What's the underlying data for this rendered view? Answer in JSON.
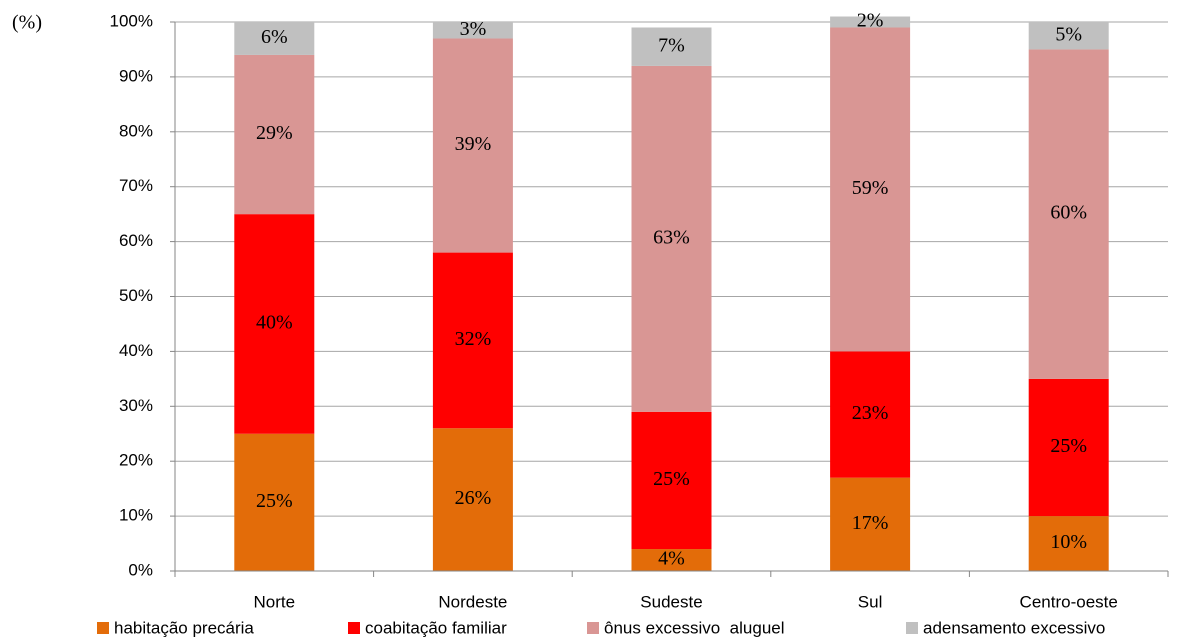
{
  "chart_data": {
    "type": "stacked_bar",
    "y_label": "(%)",
    "categories": [
      "Norte",
      "Nordeste",
      "Sudeste",
      "Sul",
      "Centro-oeste"
    ],
    "series": [
      {
        "name": "habitação precária",
        "color": "#E36C09",
        "values": [
          25,
          26,
          4,
          17,
          10
        ],
        "value_labels": [
          "25%",
          "26%",
          "4%",
          "17%",
          "10%"
        ]
      },
      {
        "name": "coabitação familiar",
        "color": "#FF0000",
        "values": [
          40,
          32,
          25,
          23,
          25
        ],
        "value_labels": [
          "40%",
          "32%",
          "25%",
          "23%",
          "25%"
        ]
      },
      {
        "name": "ônus excessivo  aluguel",
        "color": "#D99694",
        "values": [
          29,
          39,
          63,
          59,
          60
        ],
        "value_labels": [
          "29%",
          "39%",
          "63%",
          "59%",
          "60%"
        ]
      },
      {
        "name": "adensamento excessivo",
        "color": "#C0C0C0",
        "values": [
          6,
          3,
          7,
          2,
          5
        ],
        "value_labels": [
          "6%",
          "3%",
          "7%",
          "2%",
          "5%"
        ]
      }
    ],
    "ylim": [
      0,
      100
    ],
    "yticks": [
      {
        "value": 0,
        "label": "0%"
      },
      {
        "value": 10,
        "label": "10%"
      },
      {
        "value": 20,
        "label": "20%"
      },
      {
        "value": 30,
        "label": "30%"
      },
      {
        "value": 40,
        "label": "40%"
      },
      {
        "value": 50,
        "label": "50%"
      },
      {
        "value": 60,
        "label": "60%"
      },
      {
        "value": 70,
        "label": "70%"
      },
      {
        "value": 80,
        "label": "80%"
      },
      {
        "value": 90,
        "label": "90%"
      },
      {
        "value": 100,
        "label": "100%"
      }
    ],
    "grid": true,
    "legend": "bottom"
  }
}
